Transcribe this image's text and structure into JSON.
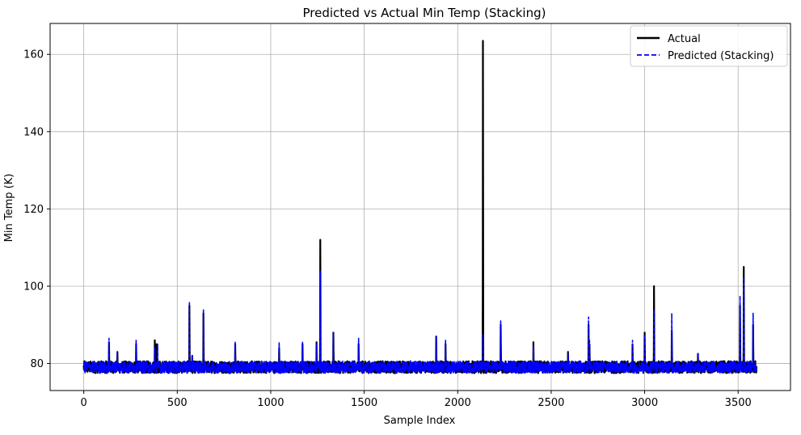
{
  "chart_data": {
    "type": "line",
    "title": "Predicted vs Actual Min Temp (Stacking)",
    "xlabel": "Sample Index",
    "ylabel": "Min Temp (K)",
    "xlim": [
      -180,
      3780
    ],
    "ylim": [
      73,
      168
    ],
    "xticks": [
      0,
      500,
      1000,
      1500,
      2000,
      2500,
      3000,
      3500
    ],
    "yticks": [
      80,
      100,
      120,
      140,
      160
    ],
    "grid": true,
    "legend_position": "top-right",
    "n_points": 3600,
    "baseline": {
      "low": 77.5,
      "high": 80.6
    },
    "series": [
      {
        "name": "Actual",
        "color": "#000000",
        "style": "solid",
        "spikes": [
          [
            135,
            85.5
          ],
          [
            180,
            83
          ],
          [
            280,
            85
          ],
          [
            380,
            86
          ],
          [
            390,
            85
          ],
          [
            565,
            95
          ],
          [
            580,
            82
          ],
          [
            640,
            93
          ],
          [
            810,
            85
          ],
          [
            1045,
            84
          ],
          [
            1170,
            85
          ],
          [
            1245,
            85.5
          ],
          [
            1265,
            112
          ],
          [
            1335,
            88
          ],
          [
            1470,
            85
          ],
          [
            1885,
            87
          ],
          [
            1935,
            85
          ],
          [
            2135,
            163.5
          ],
          [
            2230,
            90
          ],
          [
            2405,
            85.5
          ],
          [
            2590,
            83
          ],
          [
            2700,
            90
          ],
          [
            2705,
            85
          ],
          [
            2935,
            85
          ],
          [
            3000,
            88
          ],
          [
            3050,
            100
          ],
          [
            3145,
            88.5
          ],
          [
            3285,
            82.5
          ],
          [
            3510,
            95
          ],
          [
            3530,
            105
          ],
          [
            3580,
            90
          ]
        ]
      },
      {
        "name": "Predicted (Stacking)",
        "color": "#0000ff",
        "style": "dashed",
        "spikes": [
          [
            135,
            86.5
          ],
          [
            180,
            83
          ],
          [
            280,
            86
          ],
          [
            380,
            84
          ],
          [
            395,
            85
          ],
          [
            565,
            96
          ],
          [
            580,
            82
          ],
          [
            640,
            94
          ],
          [
            810,
            85.5
          ],
          [
            1045,
            85.5
          ],
          [
            1170,
            85.5
          ],
          [
            1245,
            85
          ],
          [
            1265,
            104
          ],
          [
            1335,
            88
          ],
          [
            1470,
            86.5
          ],
          [
            1885,
            87
          ],
          [
            1935,
            86
          ],
          [
            2135,
            87.5
          ],
          [
            2230,
            91
          ],
          [
            2405,
            84.5
          ],
          [
            2590,
            82.5
          ],
          [
            2700,
            92
          ],
          [
            2705,
            86
          ],
          [
            2935,
            86
          ],
          [
            3000,
            87.5
          ],
          [
            3050,
            94
          ],
          [
            3145,
            93
          ],
          [
            3285,
            82.5
          ],
          [
            3510,
            97.5
          ],
          [
            3530,
            102
          ],
          [
            3580,
            93
          ]
        ]
      }
    ]
  }
}
